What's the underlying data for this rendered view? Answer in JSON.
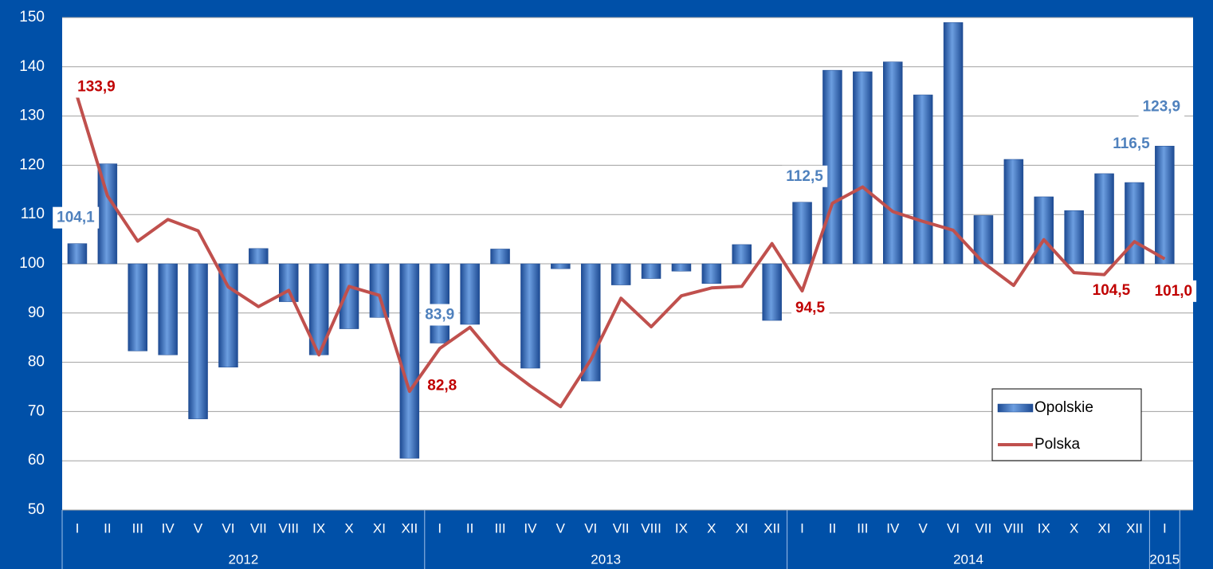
{
  "chart_data": {
    "type": "bar_line",
    "category_groups": [
      {
        "label": "2012",
        "categories": [
          "I",
          "II",
          "III",
          "IV",
          "V",
          "VI",
          "VII",
          "VIII",
          "IX",
          "X",
          "XI",
          "XII"
        ]
      },
      {
        "label": "2013",
        "categories": [
          "I",
          "II",
          "III",
          "IV",
          "V",
          "VI",
          "VII",
          "VIII",
          "IX",
          "X",
          "XI",
          "XII"
        ]
      },
      {
        "label": "2014",
        "categories": [
          "I",
          "II",
          "III",
          "IV",
          "V",
          "VI",
          "VII",
          "VIII",
          "IX",
          "X",
          "XI",
          "XII"
        ]
      },
      {
        "label": "2015",
        "categories": [
          "I"
        ]
      }
    ],
    "series": [
      {
        "name": "Opolskie",
        "type": "bar",
        "color": "#2f65b5",
        "label_color": "#4f81bd",
        "values": [
          104.1,
          120.3,
          82.3,
          81.5,
          68.5,
          79.0,
          103.1,
          92.3,
          81.5,
          86.8,
          89.1,
          60.5,
          83.9,
          87.7,
          103.0,
          78.8,
          99.0,
          76.2,
          95.7,
          97.0,
          98.5,
          96.0,
          103.9,
          88.5,
          112.5,
          139.3,
          139.0,
          141.0,
          134.3,
          149.0,
          109.8,
          121.2,
          113.6,
          110.8,
          118.3,
          116.5,
          123.9
        ],
        "value_labels": [
          "104,1",
          null,
          null,
          null,
          null,
          null,
          null,
          null,
          null,
          null,
          null,
          null,
          "83,9",
          null,
          null,
          null,
          null,
          null,
          null,
          null,
          null,
          null,
          null,
          null,
          "112,5",
          null,
          null,
          null,
          null,
          null,
          null,
          null,
          null,
          null,
          null,
          "116,5",
          "123,9"
        ]
      },
      {
        "name": "Polska",
        "type": "line",
        "color": "#c0504d",
        "label_color": "#c00000",
        "values": [
          133.9,
          113.8,
          104.6,
          109.0,
          106.7,
          95.3,
          91.3,
          94.6,
          81.5,
          95.4,
          93.6,
          74.1,
          82.8,
          87.1,
          79.8,
          75.2,
          71.0,
          80.5,
          93.0,
          87.2,
          93.5,
          95.1,
          95.4,
          104.1,
          94.5,
          112.3,
          115.6,
          110.6,
          108.6,
          106.8,
          100.2,
          95.6,
          104.9,
          98.2,
          97.8,
          104.5,
          101.0
        ],
        "value_labels": [
          "133,9",
          null,
          null,
          null,
          null,
          null,
          null,
          null,
          null,
          null,
          null,
          null,
          "82,8",
          null,
          null,
          null,
          null,
          null,
          null,
          null,
          null,
          null,
          null,
          null,
          "94,5",
          null,
          null,
          null,
          null,
          null,
          null,
          null,
          null,
          null,
          null,
          "104,5",
          "101,0"
        ]
      }
    ],
    "base": 100,
    "ylim": [
      50,
      150
    ],
    "yticks": [
      50,
      60,
      70,
      80,
      90,
      100,
      110,
      120,
      130,
      140,
      150
    ],
    "grid": true,
    "legend": "lower right"
  }
}
